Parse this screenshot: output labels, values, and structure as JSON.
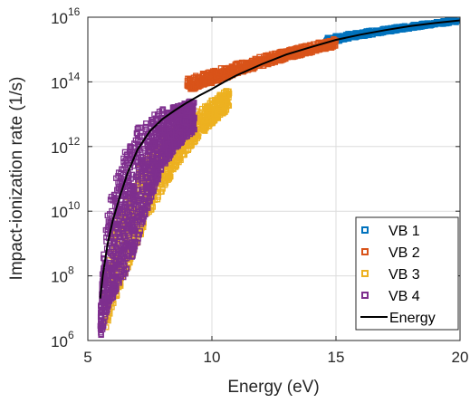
{
  "chart_data": {
    "type": "scatter",
    "xlabel": "Energy (eV)",
    "ylabel": "Impact-ionization rate (1/s)",
    "xlim": [
      5,
      20
    ],
    "ylim": [
      1000000.0,
      1e+16
    ],
    "y_scale": "log",
    "grid": true,
    "legend_position": "bottom-right",
    "x_ticks": [
      5,
      10,
      15,
      20
    ],
    "x_tick_labels": [
      "5",
      "10",
      "15",
      "20"
    ],
    "y_ticks": [
      1000000.0,
      100000000.0,
      10000000000.0,
      1000000000000.0,
      100000000000000.0,
      1e+16
    ],
    "y_tick_labels": [
      {
        "base": "10",
        "exp": "6"
      },
      {
        "base": "10",
        "exp": "8"
      },
      {
        "base": "10",
        "exp": "10"
      },
      {
        "base": "10",
        "exp": "12"
      },
      {
        "base": "10",
        "exp": "14"
      },
      {
        "base": "10",
        "exp": "16"
      }
    ],
    "series": [
      {
        "name": "VB 1",
        "marker": "square",
        "color": "#0072BD",
        "x_range": [
          14.6,
          19.9
        ],
        "y_envelope": [
          [
            14.6,
            1500000000000000.0,
            2400000000000000.0
          ],
          [
            15.5,
            2100000000000000.0,
            3100000000000000.0
          ],
          [
            16.5,
            2900000000000000.0,
            4000000000000000.0
          ],
          [
            17.5,
            3900000000000000.0,
            5100000000000000.0
          ],
          [
            18.5,
            5100000000000000.0,
            6400000000000000.0
          ],
          [
            19.5,
            6400000000000000.0,
            8000000000000000.0
          ],
          [
            19.9,
            7000000000000000.0,
            8800000000000000.0
          ]
        ]
      },
      {
        "name": "VB 2",
        "marker": "square",
        "color": "#D95319",
        "x_range": [
          9.0,
          15.0
        ],
        "y_envelope": [
          [
            9.0,
            50000000000000.0,
            130000000000000.0
          ],
          [
            10.0,
            90000000000000.0,
            220000000000000.0
          ],
          [
            11.0,
            170000000000000.0,
            380000000000000.0
          ],
          [
            12.0,
            300000000000000.0,
            620000000000000.0
          ],
          [
            13.0,
            500000000000000.0,
            950000000000000.0
          ],
          [
            14.0,
            800000000000000.0,
            1500000000000000.0
          ],
          [
            15.0,
            1200000000000000.0,
            2200000000000000.0
          ]
        ]
      },
      {
        "name": "VB 3",
        "marker": "square",
        "color": "#EDB120",
        "x_range": [
          5.7,
          10.7
        ],
        "y_envelope": [
          [
            5.7,
            1200000.0,
            100000000.0
          ],
          [
            6.0,
            10000000.0,
            3000000000.0
          ],
          [
            6.5,
            100000000.0,
            30000000000.0
          ],
          [
            7.0,
            1000000000.0,
            200000000000.0
          ],
          [
            7.5,
            8000000000.0,
            800000000000.0
          ],
          [
            8.0,
            40000000000.0,
            2000000000000.0
          ],
          [
            8.5,
            200000000000.0,
            4000000000000.0
          ],
          [
            9.0,
            700000000000.0,
            8000000000000.0
          ],
          [
            9.5,
            2000000000000.0,
            15000000000000.0
          ],
          [
            10.0,
            5000000000000.0,
            30000000000000.0
          ],
          [
            10.7,
            15000000000000.0,
            60000000000000.0
          ]
        ]
      },
      {
        "name": "VB 4",
        "marker": "square",
        "color": "#7E2F8E",
        "x_range": [
          5.5,
          9.3
        ],
        "y_envelope": [
          [
            5.5,
            1000000.0,
            10000000.0
          ],
          [
            5.7,
            5000000.0,
            3000000000.0
          ],
          [
            6.0,
            20000000.0,
            60000000000.0
          ],
          [
            6.5,
            100000000.0,
            800000000000.0
          ],
          [
            7.0,
            1000000000.0,
            4000000000000.0
          ],
          [
            7.5,
            20000000000.0,
            9000000000000.0
          ],
          [
            8.0,
            200000000000.0,
            15000000000000.0
          ],
          [
            8.5,
            800000000000.0,
            20000000000000.0
          ],
          [
            9.0,
            2000000000000.0,
            25000000000000.0
          ],
          [
            9.3,
            3000000000000.0,
            28000000000000.0
          ]
        ]
      },
      {
        "name": "Energy",
        "type": "line",
        "color": "#000000",
        "x": [
          5.5,
          5.6,
          5.8,
          6.0,
          6.3,
          6.6,
          7.0,
          7.5,
          8.0,
          8.5,
          9.0,
          9.5,
          10.0,
          10.5,
          11.0,
          12.0,
          13.0,
          14.0,
          15.0,
          16.0,
          17.0,
          18.0,
          19.0,
          20.0
        ],
        "y": [
          20000000.0,
          100000000.0,
          1000000000.0,
          5000000000.0,
          30000000000.0,
          150000000000.0,
          800000000000.0,
          3000000000000.0,
          7000000000000.0,
          13000000000000.0,
          23000000000000.0,
          38000000000000.0,
          60000000000000.0,
          100000000000000.0,
          160000000000000.0,
          350000000000000.0,
          700000000000000.0,
          1200000000000000.0,
          2000000000000000.0,
          2900000000000000.0,
          4000000000000000.0,
          5300000000000000.0,
          6600000000000000.0,
          8000000000000000.0
        ]
      }
    ]
  }
}
